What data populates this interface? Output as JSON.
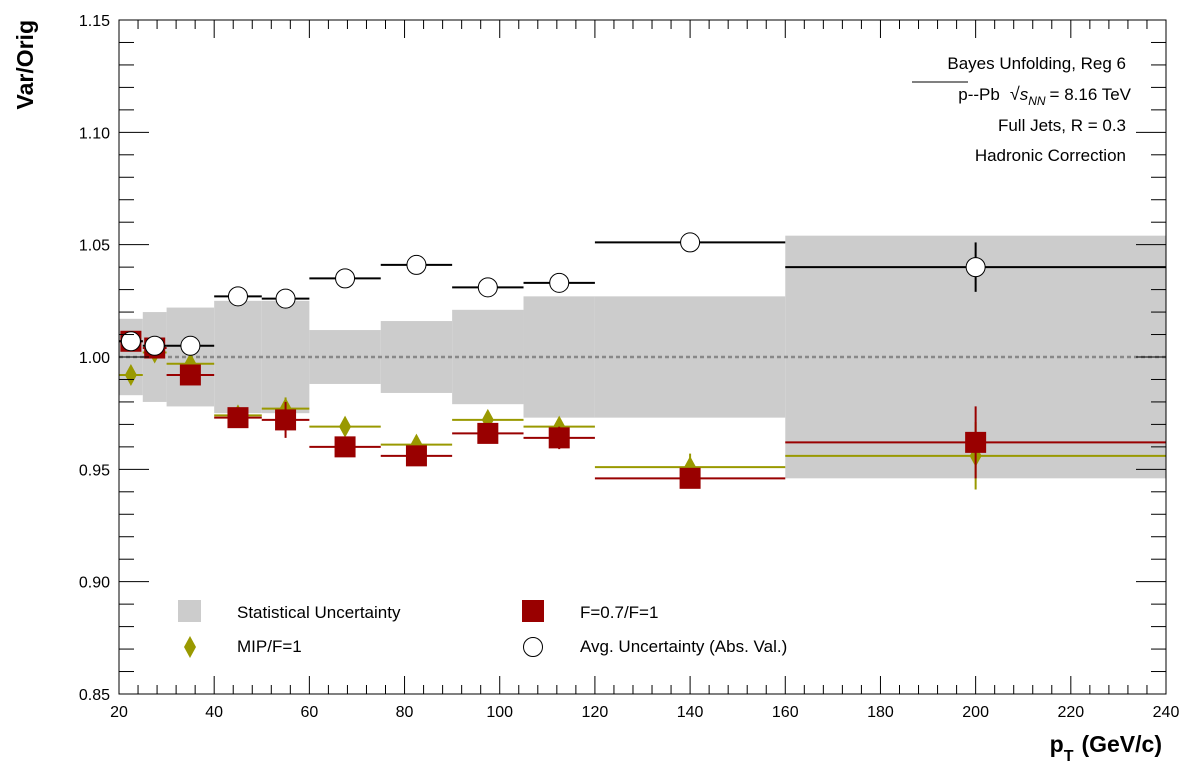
{
  "chart_data": {
    "type": "scatter",
    "title": "",
    "xlabel": "p",
    "xlabel_sub": "T",
    "xlabel_unit": "(GeV/c)",
    "ylabel": "Var/Orig",
    "xlim": [
      20,
      240
    ],
    "ylim": [
      0.85,
      1.15
    ],
    "x_ticks": [
      "20",
      "40",
      "60",
      "80",
      "100",
      "120",
      "140",
      "160",
      "180",
      "200",
      "220",
      "240"
    ],
    "y_ticks": [
      "0.85",
      "0.90",
      "0.95",
      "1.00",
      "1.05",
      "1.10",
      "1.15"
    ],
    "reference_line": 1.0,
    "bins": [
      [
        20,
        25
      ],
      [
        25,
        30
      ],
      [
        30,
        40
      ],
      [
        40,
        50
      ],
      [
        50,
        60
      ],
      [
        60,
        75
      ],
      [
        75,
        90
      ],
      [
        90,
        105
      ],
      [
        105,
        120
      ],
      [
        120,
        160
      ],
      [
        160,
        240
      ]
    ],
    "annotations": {
      "line1": "Bayes Unfolding, Reg 6",
      "line2_pre": "p--Pb",
      "line2_s": "s",
      "line2_sub": "NN",
      "line2_post": "= 8.16 TeV",
      "line3": "Full Jets, R = 0.3",
      "line4": "Hadronic Correction"
    },
    "series": [
      {
        "name": "Statistical Uncertainty",
        "kind": "band",
        "color": "#cccccc",
        "half_width": [
          0.017,
          0.02,
          0.022,
          0.025,
          0.025,
          0.012,
          0.016,
          0.021,
          0.027,
          0.027,
          0.054
        ]
      },
      {
        "name": "F=0.7/F=1",
        "kind": "square",
        "color": "#990000",
        "x": [
          22.5,
          27.5,
          35,
          45,
          55,
          67.5,
          82.5,
          97.5,
          112.5,
          140,
          200
        ],
        "y": [
          1.007,
          1.004,
          0.992,
          0.973,
          0.972,
          0.96,
          0.956,
          0.966,
          0.964,
          0.946,
          0.962
        ],
        "yerr": [
          0.002,
          0.002,
          0.003,
          0.003,
          0.008,
          0.002,
          0.003,
          0.003,
          0.005,
          0.004,
          0.016
        ]
      },
      {
        "name": "MIP/F=1",
        "kind": "diamond",
        "color": "#999900",
        "x": [
          22.5,
          27.5,
          35,
          45,
          55,
          67.5,
          82.5,
          97.5,
          112.5,
          140,
          200
        ],
        "y": [
          0.992,
          1.002,
          0.997,
          0.974,
          0.977,
          0.969,
          0.961,
          0.972,
          0.969,
          0.951,
          0.956
        ],
        "yerr": [
          0.003,
          0.003,
          0.003,
          0.003,
          0.005,
          0.002,
          0.003,
          0.003,
          0.003,
          0.006,
          0.015
        ]
      },
      {
        "name": "Avg. Uncertainty (Abs. Val.)",
        "kind": "circle",
        "color": "#000000",
        "x": [
          22.5,
          27.5,
          35,
          45,
          55,
          67.5,
          82.5,
          97.5,
          112.5,
          140,
          200
        ],
        "y": [
          1.007,
          1.005,
          1.005,
          1.027,
          1.026,
          1.035,
          1.041,
          1.031,
          1.033,
          1.051,
          1.04
        ],
        "yerr": [
          0.001,
          0.001,
          0.001,
          0.001,
          0.001,
          0.001,
          0.001,
          0.001,
          0.001,
          0.001,
          0.011
        ]
      }
    ],
    "legend": {
      "placement": "bottom-left",
      "columns": 2,
      "order": [
        0,
        1,
        2,
        3
      ]
    }
  }
}
